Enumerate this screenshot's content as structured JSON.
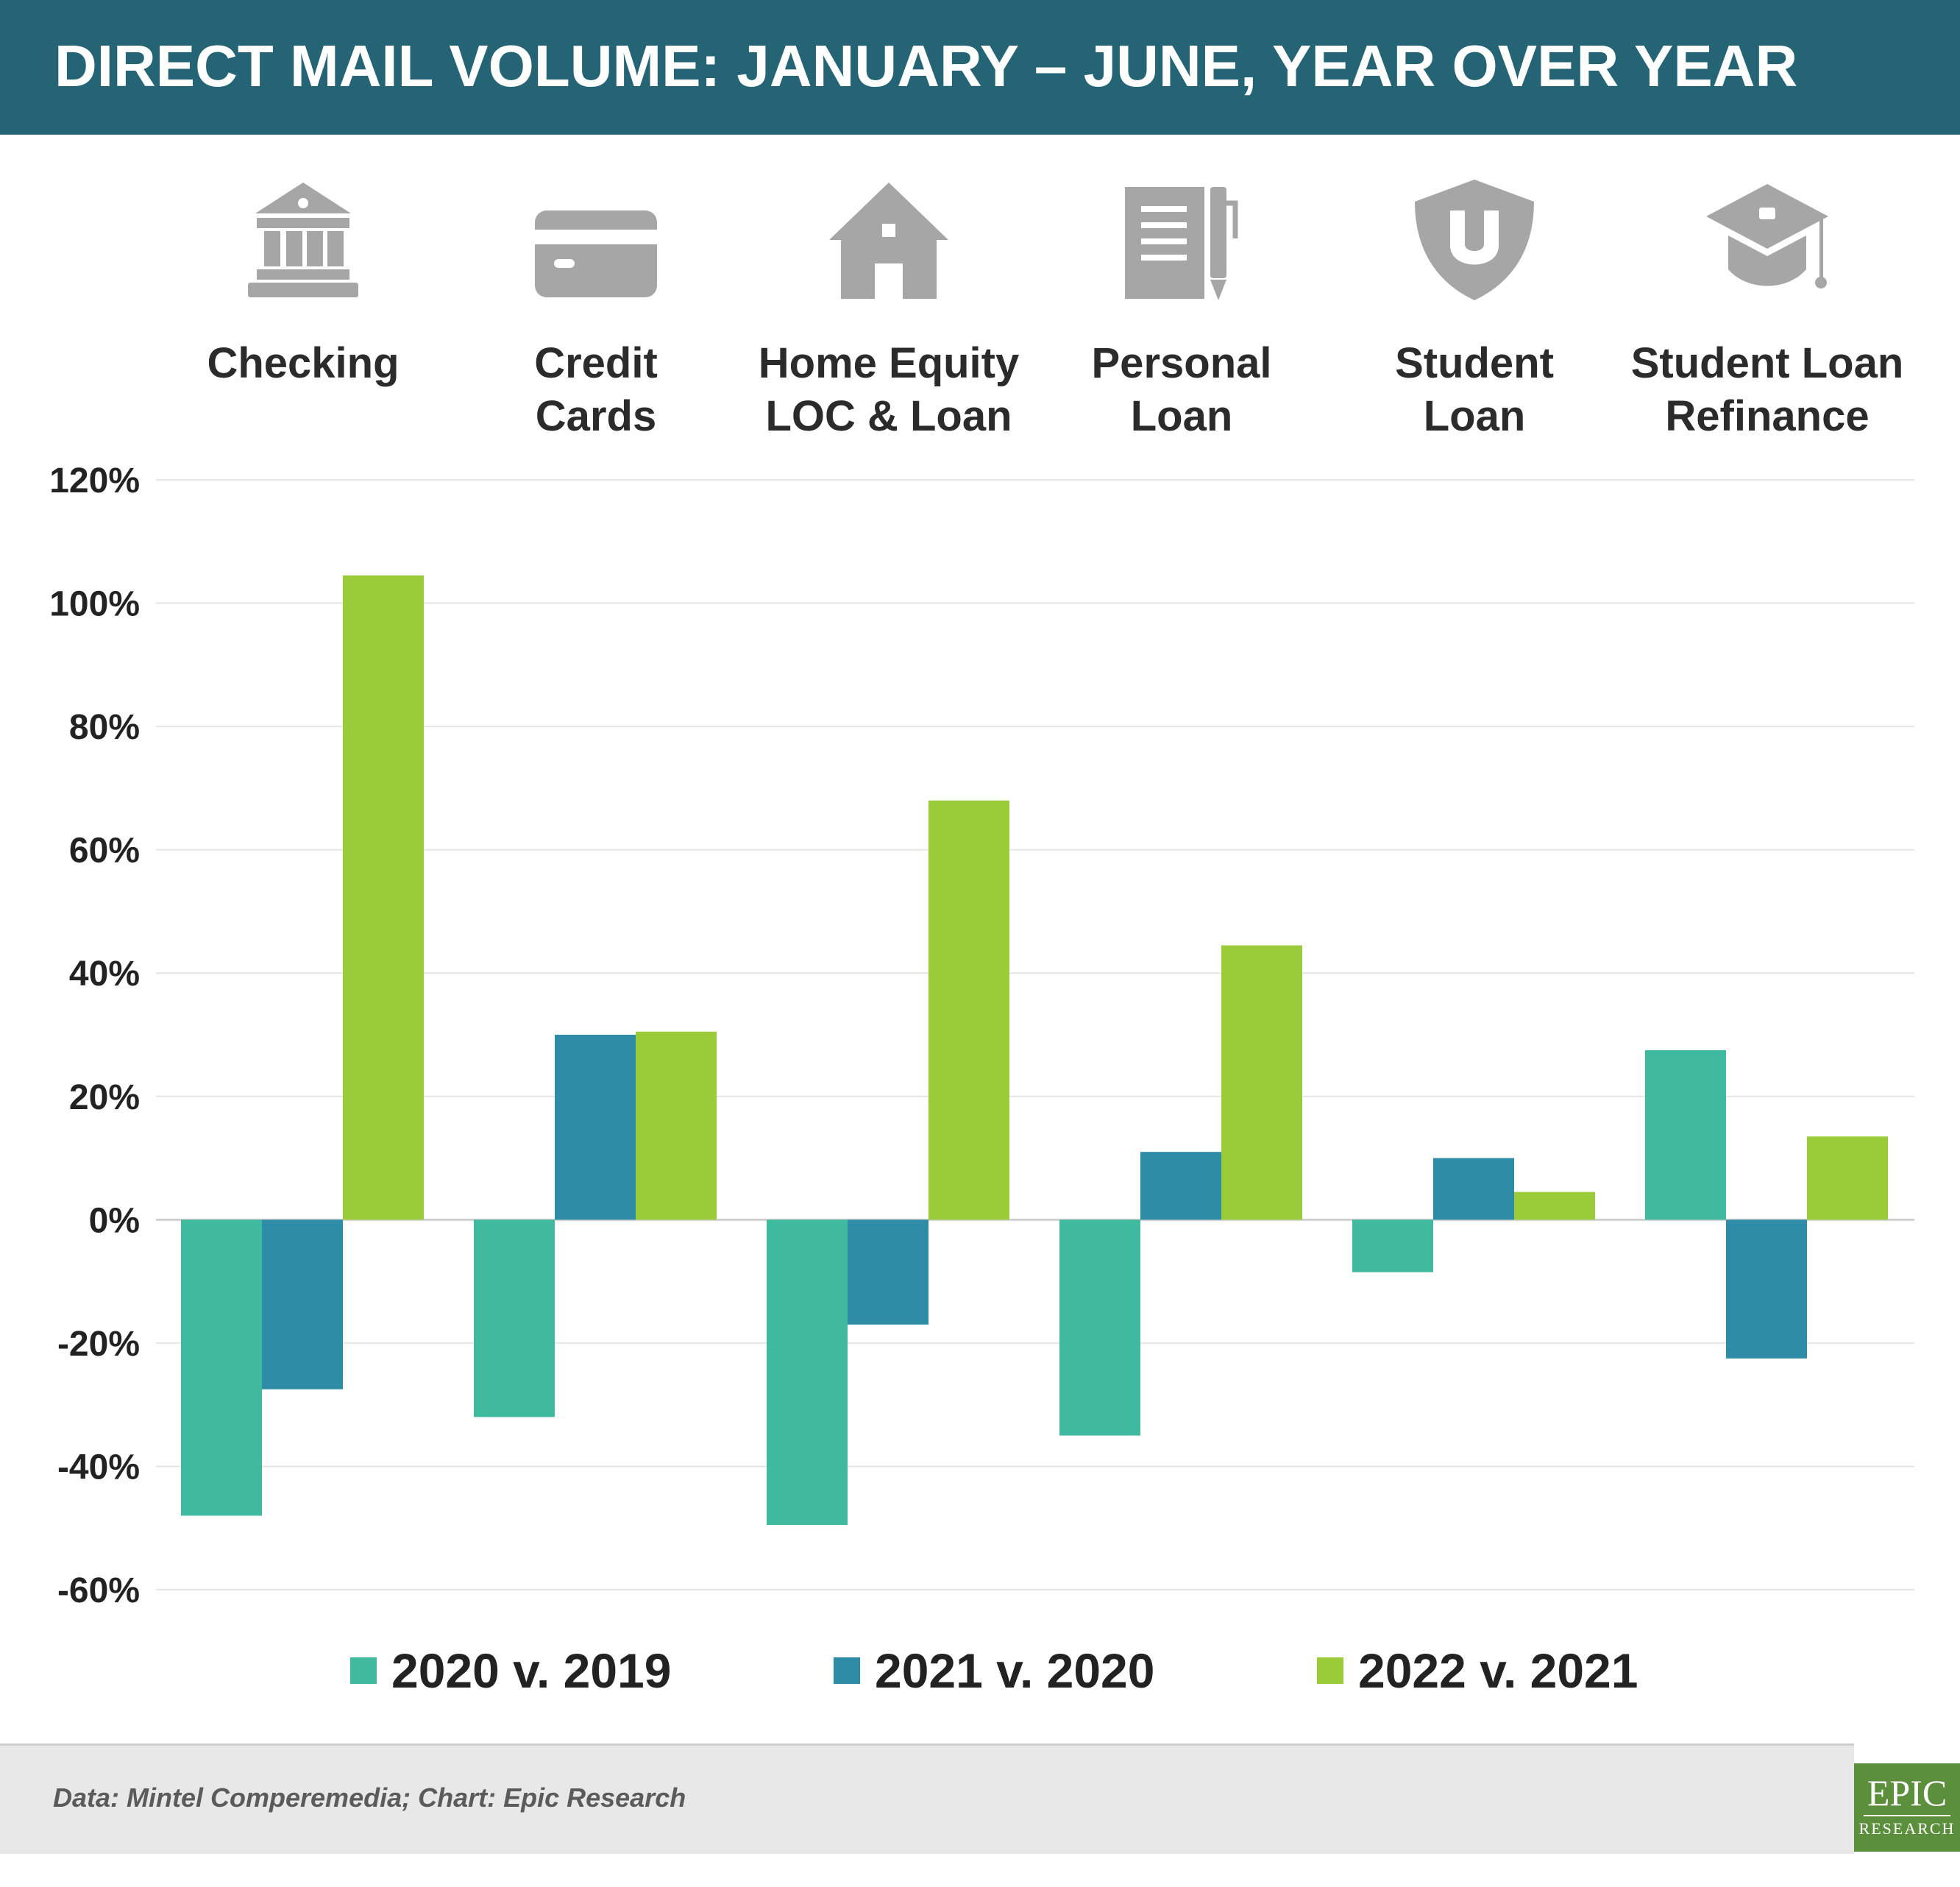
{
  "header": {
    "title": "DIRECT MAIL VOLUME: JANUARY – JUNE, YEAR OVER YEAR"
  },
  "categories": [
    {
      "label": "Checking",
      "icon": "bank-icon"
    },
    {
      "label": "Credit\nCards",
      "icon": "credit-card-icon"
    },
    {
      "label": "Home Equity\nLOC & Loan",
      "icon": "house-icon"
    },
    {
      "label": "Personal\nLoan",
      "icon": "notepad-pen-icon"
    },
    {
      "label": "Student\nLoan",
      "icon": "shield-u-icon"
    },
    {
      "label": "Student Loan\nRefinance",
      "icon": "graduation-cap-icon"
    }
  ],
  "footer": {
    "source": "Data: Mintel Comperemedia; Chart: Epic Research"
  },
  "logo": {
    "line1": "EPIC",
    "line2": "RESEARCH"
  },
  "colors": {
    "header_bg": "#246475",
    "icon_gray": "#a6a6a6",
    "grid": "#e3e3e3"
  },
  "chart_data": {
    "type": "bar",
    "categories": [
      "Checking",
      "Credit Cards",
      "Home Equity LOC & Loan",
      "Personal Loan",
      "Student Loan",
      "Student Loan Refinance"
    ],
    "series": [
      {
        "name": "2020 v. 2019",
        "color": "#3fba9f",
        "values": [
          -48,
          -32,
          -49.5,
          -35,
          -8.5,
          27.5
        ]
      },
      {
        "name": "2021 v. 2020",
        "color": "#2e8ca7",
        "values": [
          -27.5,
          30,
          -17,
          11,
          10,
          -22.5
        ]
      },
      {
        "name": "2022 v. 2021",
        "color": "#9acb38",
        "values": [
          104.5,
          30.5,
          68,
          44.5,
          4.5,
          13.5
        ]
      }
    ],
    "ylim": [
      -60,
      120
    ],
    "yticks": [
      120,
      100,
      80,
      60,
      40,
      20,
      0,
      -20,
      -40,
      -60
    ],
    "ytick_labels": [
      "120%",
      "100%",
      "80%",
      "60%",
      "40%",
      "20%",
      "0%",
      "-20%",
      "-40%",
      "-60%"
    ],
    "grid": true,
    "legend_position": "bottom"
  }
}
